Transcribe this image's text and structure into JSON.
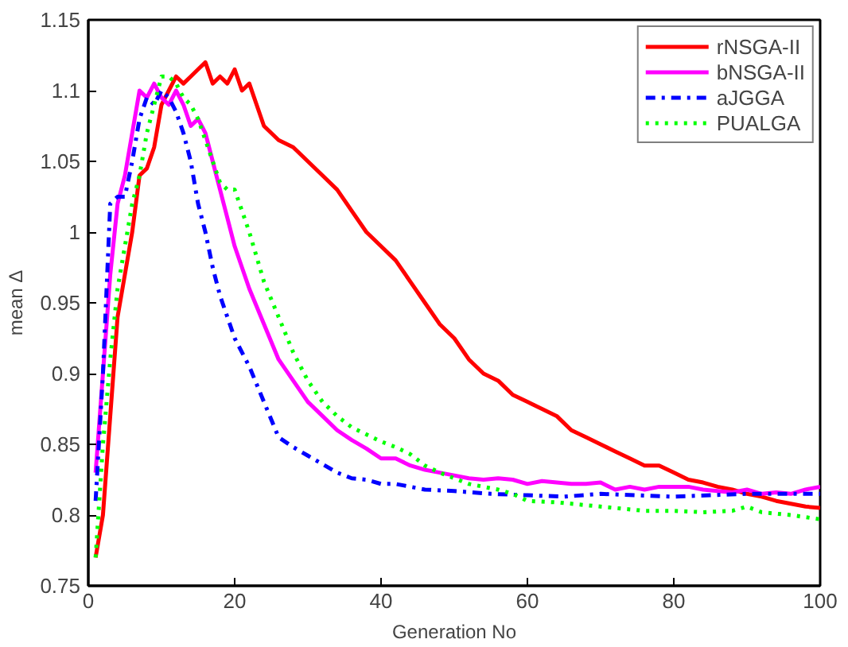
{
  "chart_data": {
    "type": "line",
    "xlabel": "Generation No",
    "ylabel": "mean Δ",
    "xlim": [
      0,
      100
    ],
    "xticks": [
      0,
      20,
      40,
      60,
      80,
      100
    ],
    "ylim": [
      0.75,
      1.15
    ],
    "yticks": [
      0.75,
      0.8,
      0.85,
      0.9,
      0.95,
      1,
      1.05,
      1.1,
      1.15
    ],
    "grid": false,
    "legend": "top right",
    "series": [
      {
        "name": "rNSGA-II",
        "color": "#ff0000",
        "line_style": "solid",
        "x": [
          1,
          2,
          3,
          4,
          5,
          6,
          7,
          8,
          9,
          10,
          11,
          12,
          13,
          14,
          15,
          16,
          17,
          18,
          19,
          20,
          21,
          22,
          24,
          26,
          28,
          30,
          32,
          34,
          36,
          38,
          40,
          42,
          44,
          46,
          48,
          50,
          52,
          54,
          56,
          58,
          60,
          62,
          64,
          66,
          68,
          70,
          72,
          74,
          76,
          78,
          80,
          82,
          84,
          86,
          88,
          90,
          92,
          94,
          96,
          98,
          100
        ],
        "values": [
          0.77,
          0.8,
          0.87,
          0.94,
          0.97,
          1.0,
          1.04,
          1.045,
          1.06,
          1.09,
          1.1,
          1.11,
          1.105,
          1.11,
          1.115,
          1.12,
          1.105,
          1.11,
          1.105,
          1.115,
          1.1,
          1.105,
          1.075,
          1.065,
          1.06,
          1.05,
          1.04,
          1.03,
          1.015,
          1.0,
          0.99,
          0.98,
          0.965,
          0.95,
          0.935,
          0.925,
          0.91,
          0.9,
          0.895,
          0.885,
          0.88,
          0.875,
          0.87,
          0.86,
          0.855,
          0.85,
          0.845,
          0.84,
          0.835,
          0.835,
          0.83,
          0.825,
          0.823,
          0.82,
          0.818,
          0.815,
          0.813,
          0.81,
          0.808,
          0.806,
          0.805
        ]
      },
      {
        "name": "bNSGA-II",
        "color": "#ff00ff",
        "line_style": "solid",
        "x": [
          1,
          2,
          3,
          4,
          5,
          6,
          7,
          8,
          9,
          10,
          11,
          12,
          13,
          14,
          15,
          16,
          17,
          18,
          19,
          20,
          22,
          24,
          26,
          28,
          30,
          32,
          34,
          36,
          38,
          40,
          42,
          44,
          46,
          48,
          50,
          52,
          54,
          56,
          58,
          60,
          62,
          64,
          66,
          68,
          70,
          72,
          74,
          76,
          78,
          80,
          82,
          84,
          86,
          88,
          90,
          92,
          94,
          96,
          98,
          100
        ],
        "values": [
          0.83,
          0.9,
          0.97,
          1.02,
          1.04,
          1.07,
          1.1,
          1.095,
          1.105,
          1.095,
          1.09,
          1.1,
          1.09,
          1.075,
          1.08,
          1.07,
          1.05,
          1.03,
          1.01,
          0.99,
          0.96,
          0.935,
          0.91,
          0.895,
          0.88,
          0.87,
          0.86,
          0.853,
          0.847,
          0.84,
          0.84,
          0.835,
          0.832,
          0.83,
          0.828,
          0.826,
          0.825,
          0.826,
          0.825,
          0.822,
          0.824,
          0.823,
          0.822,
          0.822,
          0.823,
          0.818,
          0.82,
          0.818,
          0.82,
          0.82,
          0.82,
          0.818,
          0.817,
          0.816,
          0.818,
          0.815,
          0.816,
          0.815,
          0.818,
          0.82
        ]
      },
      {
        "name": "aJGGA",
        "color": "#0000ff",
        "line_style": "dashdot",
        "x": [
          1,
          2,
          3,
          4,
          5,
          6,
          7,
          8,
          9,
          10,
          11,
          12,
          13,
          14,
          15,
          16,
          17,
          18,
          19,
          20,
          22,
          24,
          26,
          28,
          30,
          32,
          34,
          36,
          38,
          40,
          42,
          44,
          46,
          50,
          55,
          60,
          65,
          70,
          75,
          80,
          85,
          90,
          95,
          100
        ],
        "values": [
          0.81,
          0.9,
          1.02,
          1.025,
          1.025,
          1.05,
          1.08,
          1.095,
          1.09,
          1.1,
          1.095,
          1.085,
          1.07,
          1.05,
          1.02,
          1.0,
          0.975,
          0.955,
          0.94,
          0.925,
          0.905,
          0.88,
          0.855,
          0.848,
          0.842,
          0.836,
          0.83,
          0.826,
          0.825,
          0.822,
          0.822,
          0.82,
          0.818,
          0.817,
          0.815,
          0.814,
          0.813,
          0.815,
          0.814,
          0.813,
          0.814,
          0.815,
          0.815,
          0.815
        ]
      },
      {
        "name": "PUALGA",
        "color": "#00ff00",
        "line_style": "dotted",
        "x": [
          1,
          2,
          3,
          4,
          5,
          6,
          7,
          8,
          9,
          10,
          11,
          12,
          13,
          14,
          15,
          16,
          17,
          18,
          19,
          20,
          22,
          24,
          26,
          28,
          30,
          32,
          34,
          36,
          38,
          40,
          42,
          44,
          46,
          48,
          50,
          52,
          54,
          56,
          58,
          60,
          64,
          68,
          72,
          76,
          80,
          84,
          88,
          90,
          92,
          96,
          100
        ],
        "values": [
          0.77,
          0.85,
          0.91,
          0.96,
          0.99,
          1.02,
          1.04,
          1.07,
          1.09,
          1.11,
          1.11,
          1.105,
          1.095,
          1.09,
          1.08,
          1.065,
          1.05,
          1.035,
          1.03,
          1.03,
          1.0,
          0.965,
          0.94,
          0.915,
          0.895,
          0.88,
          0.87,
          0.862,
          0.857,
          0.852,
          0.848,
          0.843,
          0.835,
          0.83,
          0.826,
          0.822,
          0.82,
          0.818,
          0.815,
          0.81,
          0.809,
          0.807,
          0.805,
          0.803,
          0.803,
          0.802,
          0.803,
          0.806,
          0.802,
          0.8,
          0.797
        ]
      }
    ]
  }
}
